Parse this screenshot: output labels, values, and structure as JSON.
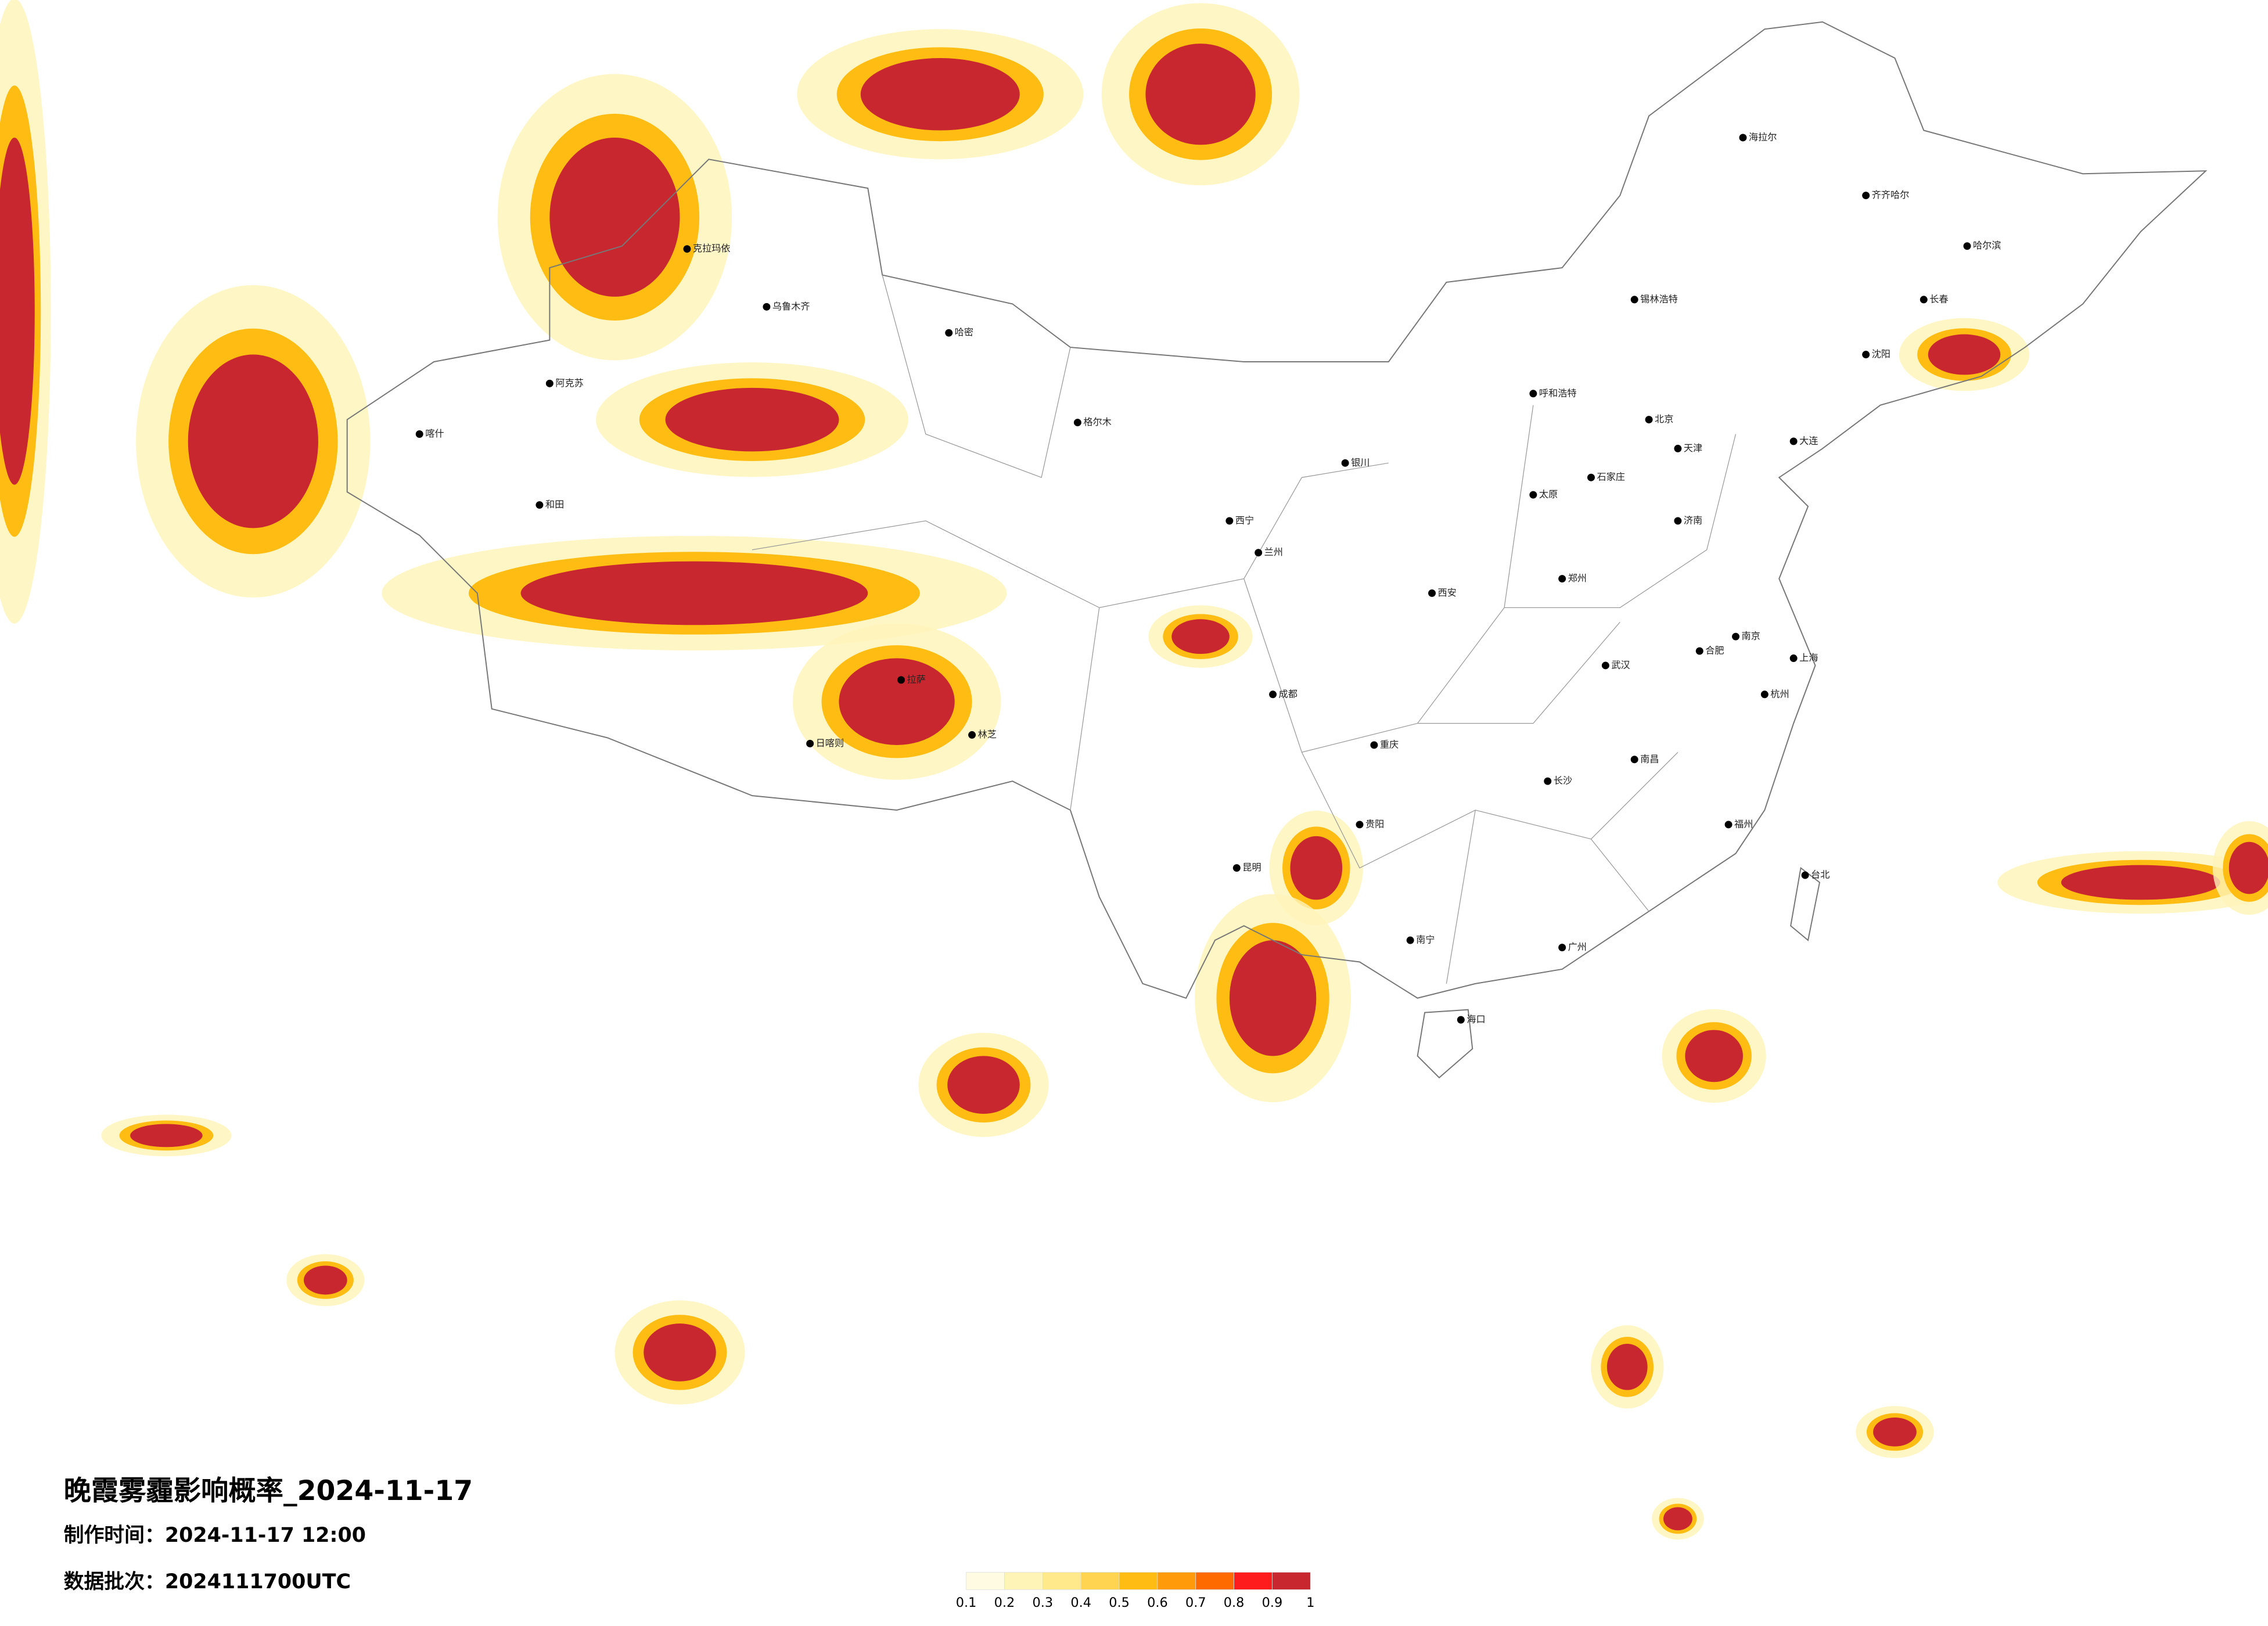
{
  "title": "晚霞雾霾影响概率_2024-11-17",
  "made_time": "制作时间：2024-11-17 12:00",
  "batch": "数据批次：2024111700UTC",
  "legend": {
    "colors": [
      "#fffbe3",
      "#fff4b8",
      "#ffe98a",
      "#ffd451",
      "#ffbd14",
      "#ff9a0a",
      "#ff6a00",
      "#ff1c1c",
      "#c8272f"
    ],
    "ticks": [
      0.1,
      0.2,
      0.3,
      0.4,
      0.5,
      0.6,
      0.7,
      0.8,
      0.9,
      1
    ]
  },
  "cities": [
    {
      "name": "克拉玛依"
    },
    {
      "name": "乌鲁木齐"
    },
    {
      "name": "哈密"
    },
    {
      "name": "阿克苏"
    },
    {
      "name": "喀什"
    },
    {
      "name": "和田"
    },
    {
      "name": "拉萨"
    },
    {
      "name": "日喀则"
    },
    {
      "name": "林芝"
    },
    {
      "name": "格尔木"
    },
    {
      "name": "西宁"
    },
    {
      "name": "兰州"
    },
    {
      "name": "银川"
    },
    {
      "name": "呼和浩特"
    },
    {
      "name": "北京"
    },
    {
      "name": "天津"
    },
    {
      "name": "石家庄"
    },
    {
      "name": "太原"
    },
    {
      "name": "济南"
    },
    {
      "name": "郑州"
    },
    {
      "name": "西安"
    },
    {
      "name": "成都"
    },
    {
      "name": "重庆"
    },
    {
      "name": "武汉"
    },
    {
      "name": "合肥"
    },
    {
      "name": "南京"
    },
    {
      "name": "上海"
    },
    {
      "name": "杭州"
    },
    {
      "name": "长沙"
    },
    {
      "name": "南昌"
    },
    {
      "name": "福州"
    },
    {
      "name": "台北"
    },
    {
      "name": "广州"
    },
    {
      "name": "南宁"
    },
    {
      "name": "海口"
    },
    {
      "name": "昆明"
    },
    {
      "name": "贵阳"
    },
    {
      "name": "哈尔滨"
    },
    {
      "name": "长春"
    },
    {
      "name": "沈阳"
    },
    {
      "name": "大连"
    },
    {
      "name": "锡林浩特"
    },
    {
      "name": "海拉尔"
    },
    {
      "name": "齐齐哈尔"
    }
  ]
}
